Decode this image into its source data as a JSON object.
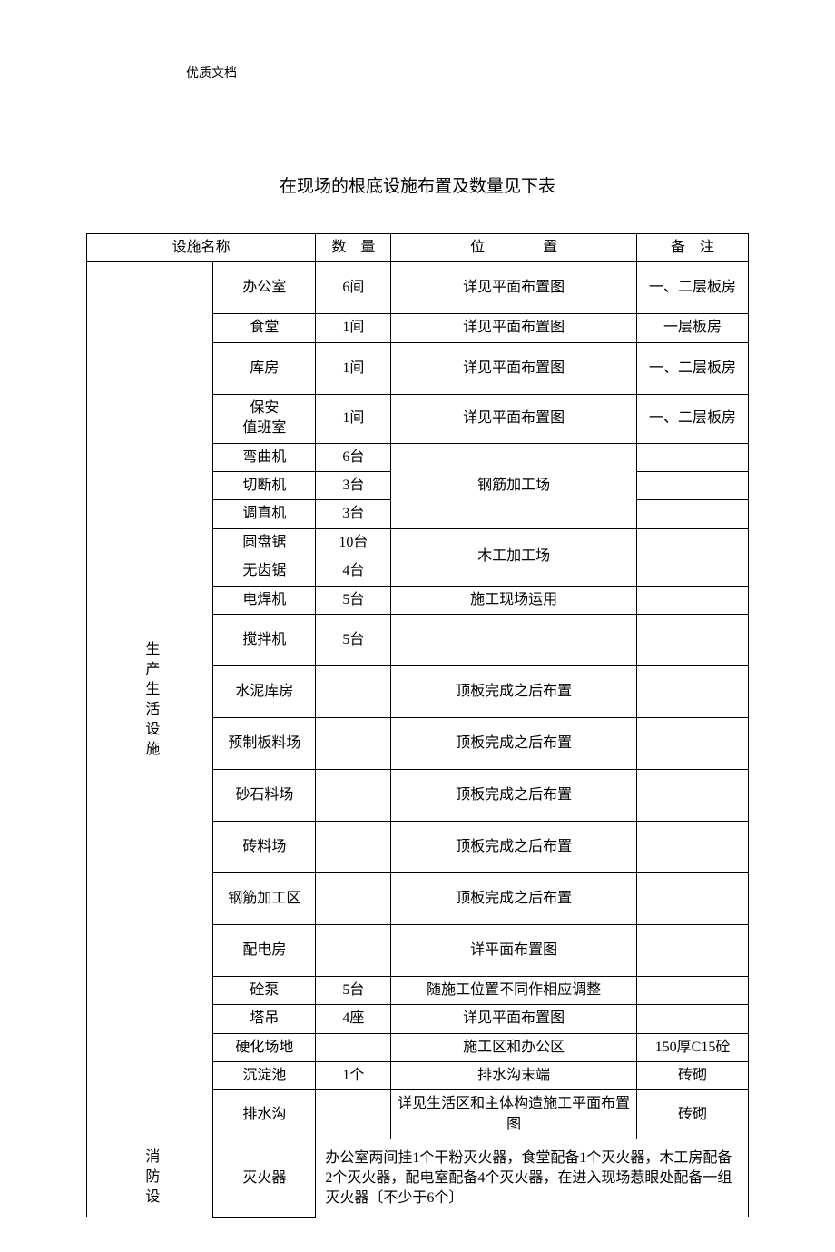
{
  "header": "优质文档",
  "title": "在现场的根底设施布置及数量见下表",
  "columns": {
    "name": "设施名称",
    "qty": "数　量",
    "loc": "位　　　　置",
    "note": "备　注"
  },
  "cat1": "生产生活设施",
  "cat2": "消防设",
  "rows": {
    "r1": {
      "name": "办公室",
      "qty": "6间",
      "loc": "详见平面布置图",
      "note": "一、二层板房"
    },
    "r2": {
      "name": "食堂",
      "qty": "1间",
      "loc": "详见平面布置图",
      "note": "一层板房"
    },
    "r3": {
      "name": "库房",
      "qty": "1间",
      "loc": "详见平面布置图",
      "note": "一、二层板房"
    },
    "r4": {
      "name": "保安\n值班室",
      "qty": "1间",
      "loc": "详见平面布置图",
      "note": "一、二层板房"
    },
    "r5": {
      "name": "弯曲机",
      "qty": "6台"
    },
    "r5loc": "钢筋加工场",
    "r6": {
      "name": "切断机",
      "qty": "3台"
    },
    "r7": {
      "name": "调直机",
      "qty": "3台"
    },
    "r8": {
      "name": "圆盘锯",
      "qty": "10台"
    },
    "r8loc": "木工加工场",
    "r9": {
      "name": "无齿锯",
      "qty": "4台"
    },
    "r10": {
      "name": "电焊机",
      "qty": "5台",
      "loc": "施工现场运用"
    },
    "r11": {
      "name": "搅拌机",
      "qty": "5台",
      "loc": ""
    },
    "r12": {
      "name": "水泥库房",
      "qty": "",
      "loc": "顶板完成之后布置"
    },
    "r13": {
      "name": "预制板料场",
      "qty": "",
      "loc": "顶板完成之后布置"
    },
    "r14": {
      "name": "砂石料场",
      "qty": "",
      "loc": "顶板完成之后布置"
    },
    "r15": {
      "name": "砖料场",
      "qty": "",
      "loc": "顶板完成之后布置"
    },
    "r16": {
      "name": "钢筋加工区",
      "qty": "",
      "loc": "顶板完成之后布置"
    },
    "r17": {
      "name": "配电房",
      "qty": "",
      "loc": "详平面布置图"
    },
    "r18": {
      "name": "砼泵",
      "qty": "5台",
      "loc": "随施工位置不同作相应调整"
    },
    "r19": {
      "name": "塔吊",
      "qty": "4座",
      "loc": "详见平面布置图"
    },
    "r20": {
      "name": "硬化场地",
      "qty": "",
      "loc": "施工区和办公区",
      "note": "150厚C15砼"
    },
    "r21": {
      "name": "沉淀池",
      "qty": "1个",
      "loc": "排水沟末端",
      "note": "砖砌"
    },
    "r22": {
      "name": "排水沟",
      "qty": "",
      "loc": "详见生活区和主体构造施工平面布置图",
      "note": "砖砌"
    },
    "r23": {
      "name": "灭火器",
      "desc": "办公室两间挂1个干粉灭火器，食堂配备1个灭火器，木工房配备2个灭火器，配电室配备4个灭火器，在进入现场惹眼处配备一组灭火器〔不少于6个〕"
    }
  }
}
